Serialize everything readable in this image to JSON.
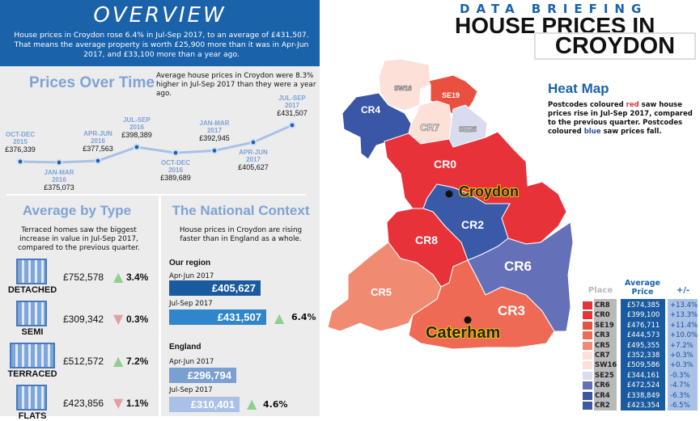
{
  "header": {
    "title": "OVERVIEW",
    "summary": "House prices in Croydon rose 6.4% in Jul-Sep 2017, to an average of £431,507. That means the average property is worth £25,900 more than it was in Apr-Jun 2017, and £33,100 more than a year ago."
  },
  "brand": {
    "kicker": "DATA BRIEFING",
    "title_line1": "HOUSE PRICES IN",
    "title_line2": "CROYDON"
  },
  "prices_over_time": {
    "title": "Prices Over Time",
    "note": "Average house prices in Croydon were 8.3% higher in Jul-Sep 2017 than they were a year ago."
  },
  "chart_data": {
    "type": "line",
    "title": "Prices Over Time",
    "categories": [
      "OCT-DEC 2015",
      "JAN-MAR 2016",
      "APR-JUN 2016",
      "JUL-SEP 2016",
      "OCT-DEC 2016",
      "JAN-MAR 2017",
      "APR-JUN 2017",
      "JUL-SEP 2017"
    ],
    "category_lines": [
      [
        "OCT-DEC",
        "2015"
      ],
      [
        "JAN-MAR",
        "2016"
      ],
      [
        "APR-JUN",
        "2016"
      ],
      [
        "JUL-SEP",
        "2016"
      ],
      [
        "OCT-DEC",
        "2016"
      ],
      [
        "JAN-MAR",
        "2017"
      ],
      [
        "APR-JUN",
        "2017"
      ],
      [
        "JUL-SEP",
        "2017"
      ]
    ],
    "values": [
      376339,
      375073,
      377563,
      398389,
      389689,
      392945,
      405627,
      431507
    ],
    "value_labels": [
      "£376,339",
      "£375,073",
      "£377,563",
      "£398,389",
      "£389,689",
      "£392,945",
      "£405,627",
      "£431,507"
    ],
    "grid": false,
    "line_color": "#a9c1e6",
    "point_color": "#1a62aa"
  },
  "by_type": {
    "title": "Average by Type",
    "note": "Terraced homes saw the biggest increase in value in Jul-Sep 2017, compared to the previous quarter.",
    "items": [
      {
        "name": "DETACHED",
        "price": "£752,578",
        "change": "3.4%",
        "direction": "up"
      },
      {
        "name": "SEMI",
        "price": "£309,342",
        "change": "0.3%",
        "direction": "down"
      },
      {
        "name": "TERRACED",
        "price": "£512,572",
        "change": "7.2%",
        "direction": "up"
      },
      {
        "name": "FLATS",
        "price": "£423,856",
        "change": "1.1%",
        "direction": "down"
      }
    ]
  },
  "national": {
    "title": "The National Context",
    "note": "House prices in Croydon are rising faster than in England as a whole.",
    "region": {
      "heading": "Our region",
      "q1_label": "Apr-Jun 2017",
      "q1_value": "£405,627",
      "q2_label": "Jul-Sep 2017",
      "q2_value": "£431,507",
      "change": "6.4%"
    },
    "england": {
      "heading": "England",
      "q1_label": "Apr-Jun 2017",
      "q1_value": "£296,794",
      "q2_label": "Jul-Sep 2017",
      "q2_value": "£310,401",
      "change": "4.6%"
    }
  },
  "heatmap": {
    "title": "Heat Map",
    "note_pre": "Postcodes coloured ",
    "note_red": "red",
    "note_mid": " saw house prices rise in Jul-Sep 2017, compared to the previous quarter. Postcodes coloured ",
    "note_blue": "blue",
    "note_post": " saw prices fall.",
    "towns": [
      "Croydon",
      "Caterham"
    ],
    "table_headers": [
      "Place",
      "Average Price",
      "+/-"
    ],
    "rows": [
      {
        "place": "CR8",
        "price": "£574,385",
        "change": "+13.4%",
        "color": "#e8323a"
      },
      {
        "place": "CR0",
        "price": "£399,100",
        "change": "+13.3%",
        "color": "#e8323a"
      },
      {
        "place": "SE19",
        "price": "£476,711",
        "change": "+11.4%",
        "color": "#e9503f"
      },
      {
        "place": "CR3",
        "price": "£444,573",
        "change": "+10.0%",
        "color": "#ee6a55"
      },
      {
        "place": "CR5",
        "price": "£495,355",
        "change": "+7.2%",
        "color": "#f08a70"
      },
      {
        "place": "CR7",
        "price": "£352,338",
        "change": "+0.3%",
        "color": "#fde0d8"
      },
      {
        "place": "SW16",
        "price": "£509,586",
        "change": "+0.3%",
        "color": "#fde0d8"
      },
      {
        "place": "SE25",
        "price": "£344,161",
        "change": "-0.3%",
        "color": "#d8dcee"
      },
      {
        "place": "CR6",
        "price": "£472,524",
        "change": "-4.7%",
        "color": "#6470b8"
      },
      {
        "place": "CR4",
        "price": "£338,849",
        "change": "-6.3%",
        "color": "#3a56a6"
      },
      {
        "place": "CR2",
        "price": "£423,354",
        "change": "-6.5%",
        "color": "#3a5aa8"
      }
    ]
  }
}
